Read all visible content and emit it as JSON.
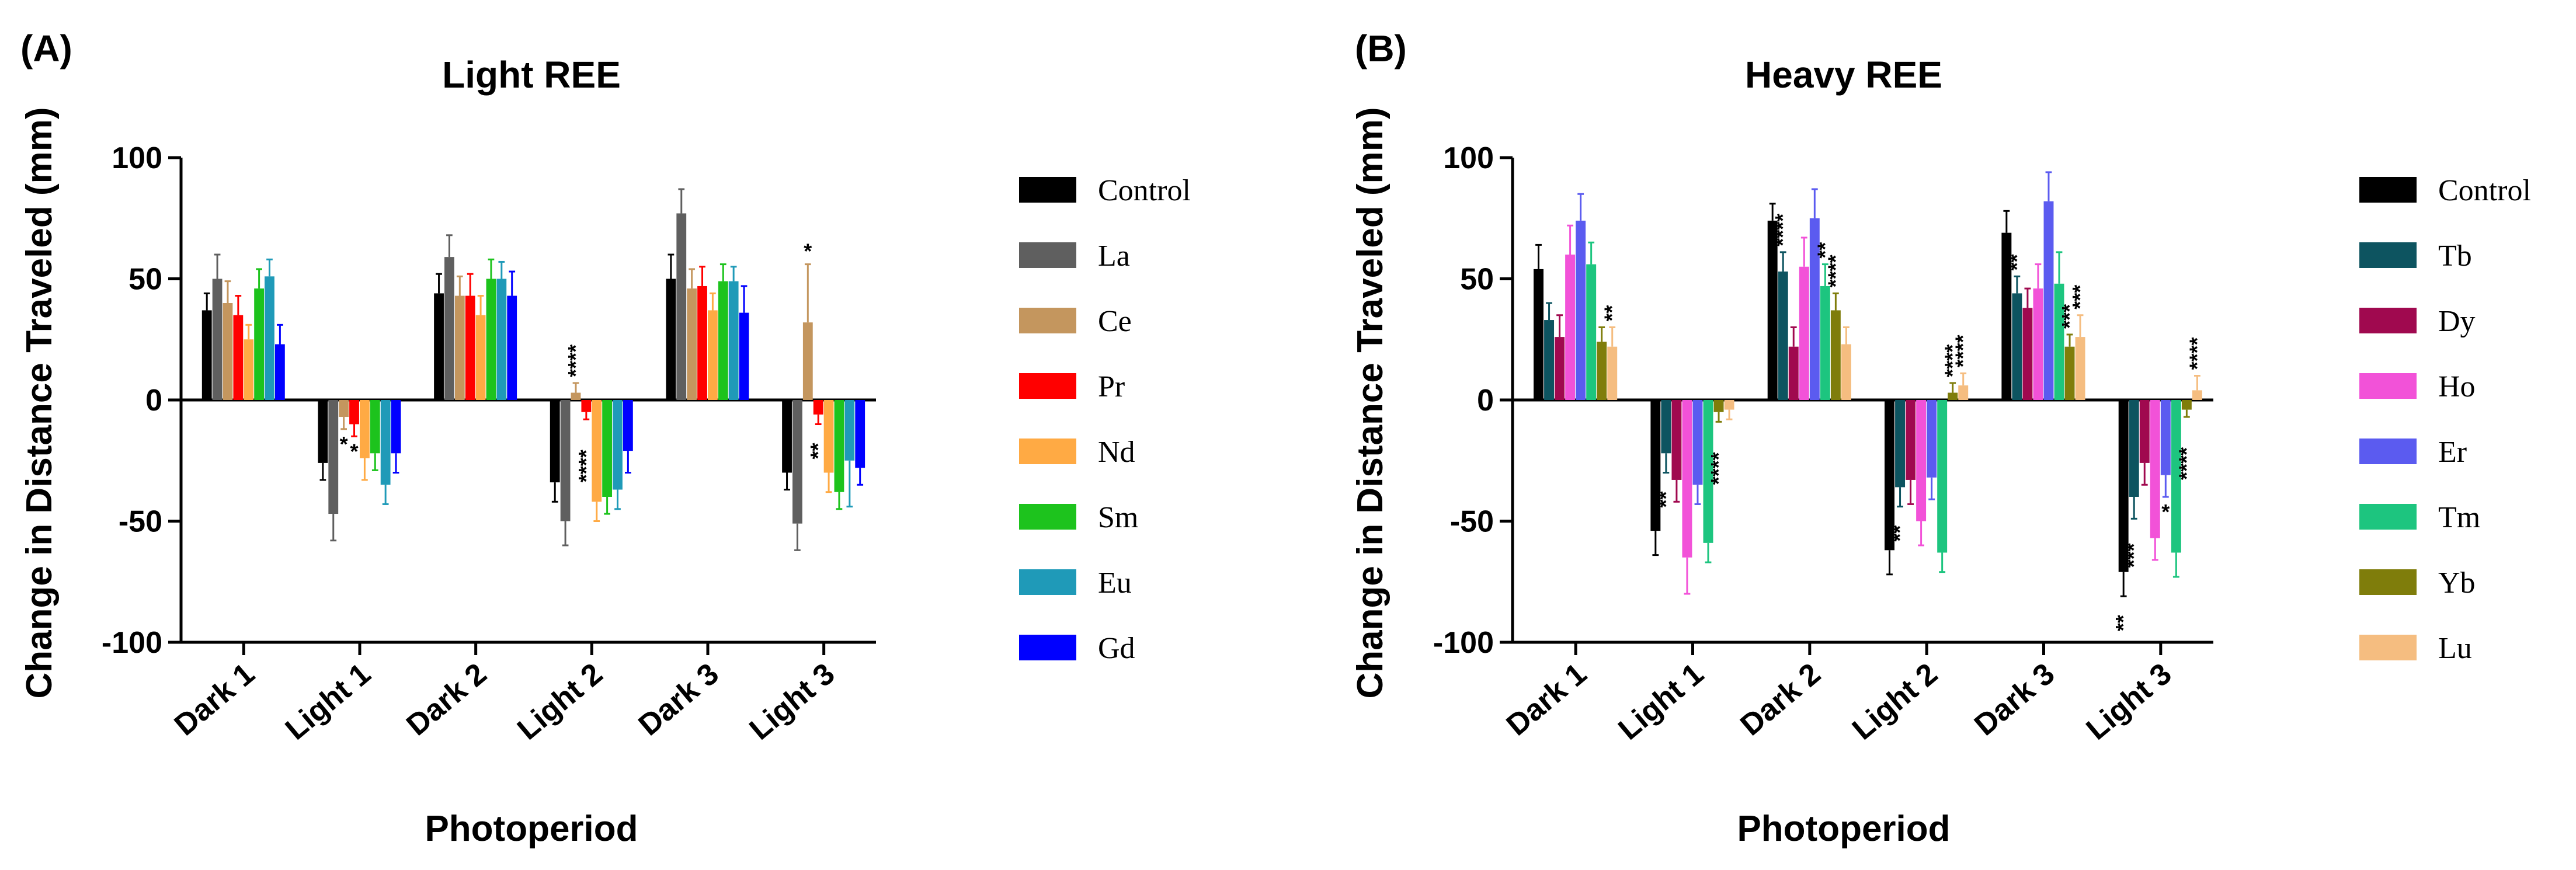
{
  "chart_data": [
    {
      "panel": "(A)",
      "type": "bar",
      "title": "Light REE",
      "xlabel": "Photoperiod",
      "ylabel": "Change in Distance Traveled (mm)",
      "ylim": [
        -100,
        100
      ],
      "yticks": [
        100,
        50,
        0,
        -50,
        -100
      ],
      "categories": [
        "Dark 1",
        "Light 1",
        "Dark 2",
        "Light 2",
        "Dark 3",
        "Light 3"
      ],
      "legend_position": "right",
      "series": [
        {
          "name": "Control",
          "color": "#000000",
          "values": [
            37,
            -26,
            44,
            -34,
            50,
            -30
          ],
          "errors": [
            7,
            7,
            8,
            8,
            10,
            7
          ]
        },
        {
          "name": "La",
          "color": "#5f5f5f",
          "values": [
            50,
            -47,
            59,
            -50,
            77,
            -51
          ],
          "errors": [
            10,
            11,
            9,
            10,
            10,
            11
          ]
        },
        {
          "name": "Ce",
          "color": "#c4965e",
          "values": [
            40,
            -7,
            43,
            3,
            46,
            32
          ],
          "errors": [
            9,
            5,
            8,
            4,
            8,
            24
          ]
        },
        {
          "name": "Pr",
          "color": "#ff0000",
          "values": [
            35,
            -10,
            43,
            -5,
            47,
            -6
          ],
          "errors": [
            8,
            5,
            9,
            3,
            8,
            4
          ]
        },
        {
          "name": "Nd",
          "color": "#ffaa44",
          "values": [
            25,
            -24,
            35,
            -42,
            37,
            -30
          ],
          "errors": [
            6,
            9,
            8,
            8,
            7,
            8
          ]
        },
        {
          "name": "Sm",
          "color": "#1dc31d",
          "values": [
            46,
            -22,
            50,
            -40,
            49,
            -38
          ],
          "errors": [
            8,
            7,
            8,
            7,
            7,
            7
          ]
        },
        {
          "name": "Eu",
          "color": "#1f9ab8",
          "values": [
            51,
            -35,
            50,
            -37,
            49,
            -25
          ],
          "errors": [
            7,
            8,
            7,
            8,
            6,
            19
          ]
        },
        {
          "name": "Gd",
          "color": "#0000ff",
          "values": [
            23,
            -22,
            43,
            -21,
            36,
            -28
          ],
          "errors": [
            8,
            8,
            10,
            9,
            11,
            7
          ]
        }
      ],
      "annotations": [
        {
          "text": "*",
          "category": "Light 1",
          "series": "Ce"
        },
        {
          "text": "*",
          "category": "Light 1",
          "series": "Pr"
        },
        {
          "text": "****",
          "category": "Light 2",
          "series": "Ce"
        },
        {
          "text": "****",
          "category": "Light 2",
          "series": "Pr"
        },
        {
          "text": "*",
          "category": "Light 3",
          "series": "Ce"
        },
        {
          "text": "**",
          "category": "Light 3",
          "series": "Pr"
        }
      ]
    },
    {
      "panel": "(B)",
      "type": "bar",
      "title": "Heavy REE",
      "xlabel": "Photoperiod",
      "ylabel": "Change in Distance Traveled (mm)",
      "ylim": [
        -100,
        100
      ],
      "yticks": [
        100,
        50,
        0,
        -50,
        -100
      ],
      "categories": [
        "Dark 1",
        "Light 1",
        "Dark 2",
        "Light 2",
        "Dark 3",
        "Light 3"
      ],
      "legend_position": "right",
      "series": [
        {
          "name": "Control",
          "color": "#000000",
          "values": [
            54,
            -54,
            74,
            -62,
            69,
            -71
          ],
          "errors": [
            10,
            10,
            7,
            10,
            9,
            10
          ]
        },
        {
          "name": "Tb",
          "color": "#0d5460",
          "values": [
            33,
            -22,
            53,
            -36,
            44,
            -40
          ],
          "errors": [
            7,
            8,
            8,
            8,
            7,
            9
          ]
        },
        {
          "name": "Dy",
          "color": "#a0094f",
          "values": [
            26,
            -33,
            22,
            -33,
            38,
            -26
          ],
          "errors": [
            9,
            9,
            8,
            10,
            8,
            9
          ]
        },
        {
          "name": "Ho",
          "color": "#f252d8",
          "values": [
            60,
            -65,
            55,
            -50,
            46,
            -57
          ],
          "errors": [
            12,
            15,
            12,
            10,
            10,
            9
          ]
        },
        {
          "name": "Er",
          "color": "#5b5bf0",
          "values": [
            74,
            -35,
            75,
            -32,
            82,
            -31
          ],
          "errors": [
            11,
            8,
            12,
            9,
            12,
            9
          ]
        },
        {
          "name": "Tm",
          "color": "#1dc57f",
          "values": [
            56,
            -59,
            47,
            -63,
            48,
            -63
          ],
          "errors": [
            9,
            8,
            9,
            8,
            13,
            10
          ]
        },
        {
          "name": "Yb",
          "color": "#7f7d0b",
          "values": [
            24,
            -5,
            37,
            3,
            22,
            -4
          ],
          "errors": [
            6,
            4,
            7,
            4,
            5,
            3
          ]
        },
        {
          "name": "Lu",
          "color": "#f5bd80",
          "values": [
            22,
            -4,
            23,
            6,
            26,
            4
          ],
          "errors": [
            8,
            4,
            7,
            5,
            9,
            6
          ]
        }
      ],
      "annotations": [
        {
          "text": "**",
          "category": "Dark 1",
          "series": "Lu"
        },
        {
          "text": "**",
          "category": "Light 1",
          "series": "Tb"
        },
        {
          "text": "****",
          "category": "Light 1",
          "series": "Yb"
        },
        {
          "text": "****",
          "category": "Dark 2",
          "series": "Tb"
        },
        {
          "text": "**",
          "category": "Dark 2",
          "series": "Tm"
        },
        {
          "text": "****",
          "category": "Dark 2",
          "series": "Yb"
        },
        {
          "text": "**",
          "category": "Light 2",
          "series": "Tb"
        },
        {
          "text": "****",
          "category": "Light 2",
          "series": "Yb"
        },
        {
          "text": "****",
          "category": "Light 2",
          "series": "Lu"
        },
        {
          "text": "**",
          "category": "Dark 3",
          "series": "Tb"
        },
        {
          "text": "***",
          "category": "Dark 3",
          "series": "Yb"
        },
        {
          "text": "***",
          "category": "Dark 3",
          "series": "Lu"
        },
        {
          "text": "**",
          "category": "Light 3",
          "series": "Control"
        },
        {
          "text": "***",
          "category": "Light 3",
          "series": "Tb"
        },
        {
          "text": "*",
          "category": "Light 3",
          "series": "Er"
        },
        {
          "text": "****",
          "category": "Light 3",
          "series": "Yb"
        },
        {
          "text": "****",
          "category": "Light 3",
          "series": "Lu"
        }
      ]
    }
  ]
}
